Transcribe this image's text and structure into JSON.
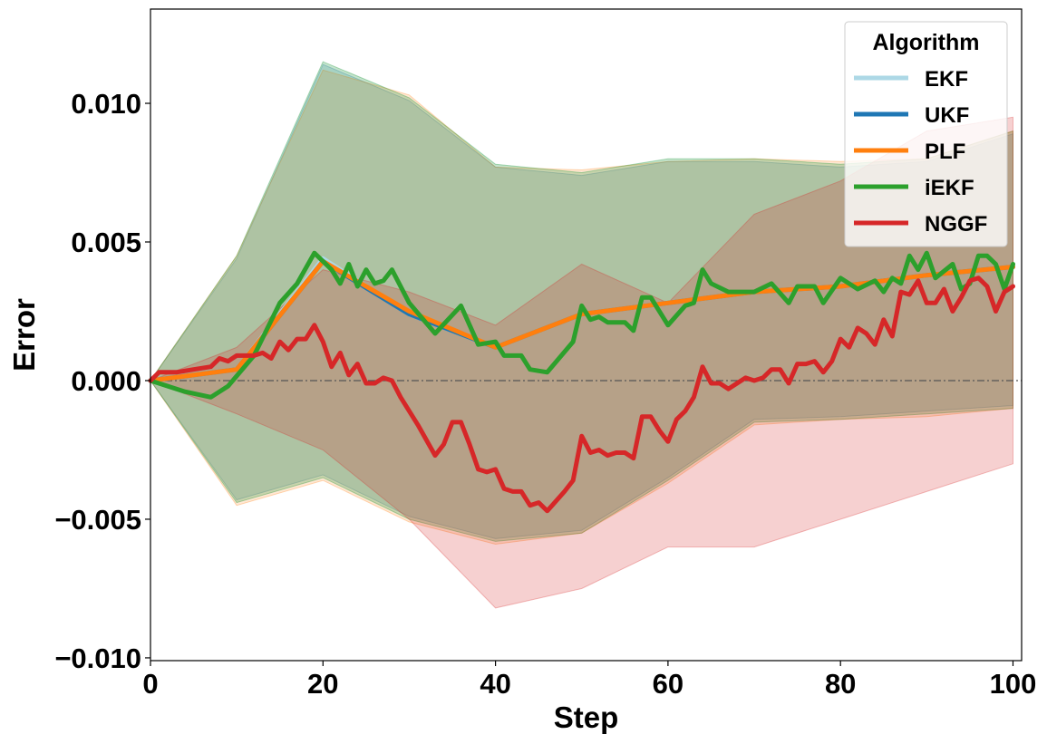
{
  "chart_data": {
    "type": "line",
    "title": "",
    "xlabel": "Step",
    "ylabel": "Error",
    "xlim": [
      0,
      101
    ],
    "ylim": [
      -0.0101,
      0.0134
    ],
    "xticks": [
      0,
      20,
      40,
      60,
      80,
      100
    ],
    "xtick_labels": [
      "0",
      "20",
      "40",
      "60",
      "80",
      "100"
    ],
    "yticks": [
      -0.01,
      -0.005,
      0.0,
      0.005,
      0.01
    ],
    "ytick_labels": [
      "−0.010",
      "−0.005",
      "0.000",
      "0.005",
      "0.010"
    ],
    "reference_line": {
      "y": 0.0,
      "style": "dash-dot",
      "color": "#555555"
    },
    "grid": false,
    "legend": {
      "title": "Algorithm",
      "placement": "top-right"
    },
    "series": [
      {
        "name": "EKF",
        "color": "#add8e6",
        "x": [
          0,
          10,
          20,
          30,
          40,
          50,
          60,
          70,
          80,
          90,
          100
        ],
        "values": [
          0.0,
          0.0004,
          0.0044,
          0.0024,
          0.0012,
          0.0024,
          0.0028,
          0.0032,
          0.0034,
          0.0038,
          0.0041
        ],
        "band_upper": [
          0.0,
          0.0045,
          0.0115,
          0.0102,
          0.0078,
          0.0075,
          0.008,
          0.008,
          0.0078,
          0.008,
          0.009
        ],
        "band_lower": [
          0.0,
          -0.0044,
          -0.0035,
          -0.005,
          -0.0058,
          -0.0055,
          -0.0036,
          -0.0015,
          -0.0014,
          -0.0012,
          -0.001
        ]
      },
      {
        "name": "UKF",
        "color": "#1f77b4",
        "x": [
          0,
          10,
          20,
          30,
          40,
          50,
          60,
          70,
          80,
          90,
          100
        ],
        "values": [
          0.0,
          0.0004,
          0.0043,
          0.0024,
          0.0012,
          0.0024,
          0.0028,
          0.0032,
          0.0034,
          0.0038,
          0.0041
        ],
        "band_upper": [
          0.0,
          0.0044,
          0.0114,
          0.0101,
          0.0077,
          0.0074,
          0.0079,
          0.0079,
          0.0077,
          0.0079,
          0.0089
        ],
        "band_lower": [
          0.0,
          -0.0043,
          -0.0034,
          -0.0049,
          -0.0057,
          -0.0054,
          -0.0035,
          -0.0014,
          -0.0013,
          -0.0011,
          -0.0009
        ]
      },
      {
        "name": "PLF",
        "color": "#ff7f0e",
        "x": [
          0,
          10,
          20,
          30,
          40,
          50,
          60,
          70,
          80,
          90,
          100
        ],
        "values": [
          0.0,
          0.0004,
          0.0043,
          0.0025,
          0.0012,
          0.0024,
          0.0028,
          0.0032,
          0.0034,
          0.0038,
          0.0041
        ],
        "band_upper": [
          0.0,
          0.0045,
          0.0112,
          0.0103,
          0.0077,
          0.0076,
          0.0079,
          0.008,
          0.0079,
          0.008,
          0.009
        ],
        "band_lower": [
          0.0,
          -0.0045,
          -0.0036,
          -0.0051,
          -0.0059,
          -0.0055,
          -0.0037,
          -0.0016,
          -0.0014,
          -0.0013,
          -0.001
        ]
      },
      {
        "name": "iEKF",
        "color": "#2ca02c",
        "x": [
          0,
          2,
          4,
          7,
          9,
          12,
          15,
          17,
          19,
          21,
          22,
          23,
          24,
          25,
          26,
          27,
          28,
          30,
          33,
          36,
          38,
          40,
          41,
          43,
          44,
          46,
          49,
          50,
          51,
          52,
          53,
          55,
          56,
          57,
          58,
          60,
          62,
          63,
          64,
          65,
          67,
          70,
          72,
          74,
          75,
          77,
          78,
          80,
          82,
          84,
          85,
          86,
          87,
          88,
          89,
          90,
          91,
          93,
          94,
          95,
          96,
          97,
          98,
          99,
          100
        ],
        "values": [
          0.0,
          -0.0002,
          -0.0004,
          -0.0006,
          -0.0002,
          0.0009,
          0.0028,
          0.0035,
          0.0046,
          0.004,
          0.0035,
          0.0042,
          0.0034,
          0.004,
          0.0035,
          0.0036,
          0.004,
          0.0028,
          0.0017,
          0.0027,
          0.0013,
          0.0014,
          0.0009,
          0.0009,
          0.0004,
          0.0003,
          0.0014,
          0.0027,
          0.0022,
          0.0023,
          0.0021,
          0.0021,
          0.0018,
          0.003,
          0.003,
          0.002,
          0.0027,
          0.0028,
          0.004,
          0.0035,
          0.0032,
          0.0032,
          0.0035,
          0.0028,
          0.0034,
          0.0034,
          0.0028,
          0.0037,
          0.0033,
          0.0036,
          0.0032,
          0.0037,
          0.0035,
          0.0045,
          0.004,
          0.0046,
          0.0037,
          0.0042,
          0.0033,
          0.0035,
          0.0045,
          0.0045,
          0.0042,
          0.0033,
          0.0042
        ],
        "band_upper": [
          0.0,
          0.0045,
          0.0115,
          0.0102,
          0.0078,
          0.0075,
          0.008,
          0.008,
          0.0078,
          0.008,
          0.009
        ],
        "band_lower": [
          0.0,
          -0.0044,
          -0.0035,
          -0.005,
          -0.0058,
          -0.0055,
          -0.0036,
          -0.0015,
          -0.0014,
          -0.0012,
          -0.001
        ],
        "band_x": [
          0,
          10,
          20,
          30,
          40,
          50,
          60,
          70,
          80,
          90,
          100
        ]
      },
      {
        "name": "NGGF",
        "color": "#d62728",
        "x": [
          0,
          1,
          2,
          3,
          5,
          7,
          8,
          9,
          10,
          11,
          12,
          13,
          14,
          15,
          16,
          17,
          18,
          19,
          20,
          21,
          22,
          23,
          24,
          25,
          26,
          27,
          28,
          29,
          31,
          33,
          34,
          35,
          36,
          37,
          38,
          39,
          40,
          41,
          42,
          43,
          44,
          45,
          46,
          48,
          49,
          50,
          51,
          52,
          53,
          54,
          55,
          56,
          57,
          58,
          59,
          60,
          61,
          62,
          63,
          64,
          65,
          66,
          67,
          68,
          69,
          70,
          71,
          72,
          73,
          74,
          75,
          76,
          77,
          78,
          79,
          80,
          81,
          82,
          83,
          84,
          85,
          86,
          87,
          88,
          89,
          90,
          91,
          92,
          93,
          94,
          95,
          96,
          97,
          98,
          99,
          100
        ],
        "values": [
          0.0,
          0.0003,
          0.0003,
          0.0003,
          0.0004,
          0.0005,
          0.0008,
          0.0007,
          0.0009,
          0.0009,
          0.0009,
          0.001,
          0.0008,
          0.0014,
          0.0011,
          0.0015,
          0.0015,
          0.002,
          0.0014,
          0.0005,
          0.001,
          0.0002,
          0.0006,
          -0.0001,
          -0.0001,
          0.0001,
          0.0,
          -0.0006,
          -0.0016,
          -0.0027,
          -0.0023,
          -0.0015,
          -0.0015,
          -0.0023,
          -0.0032,
          -0.0033,
          -0.0032,
          -0.0039,
          -0.004,
          -0.004,
          -0.0045,
          -0.0044,
          -0.0047,
          -0.004,
          -0.0036,
          -0.002,
          -0.0026,
          -0.0025,
          -0.0027,
          -0.0026,
          -0.0026,
          -0.0028,
          -0.0013,
          -0.0013,
          -0.0018,
          -0.0022,
          -0.0014,
          -0.0011,
          -0.0006,
          0.0005,
          -0.0001,
          -0.0001,
          -0.0003,
          -0.0001,
          0.0001,
          0.0,
          0.0001,
          0.0004,
          0.0004,
          -0.0001,
          0.0006,
          0.0006,
          0.0007,
          0.0003,
          0.0007,
          0.0015,
          0.0012,
          0.0019,
          0.0017,
          0.0013,
          0.0022,
          0.0016,
          0.0032,
          0.0031,
          0.0036,
          0.0028,
          0.0028,
          0.0033,
          0.0025,
          0.003,
          0.0036,
          0.0037,
          0.0034,
          0.0025,
          0.0032,
          0.0034
        ],
        "band_upper": [
          0.0,
          0.0012,
          0.004,
          0.0032,
          0.002,
          0.0042,
          0.0028,
          0.006,
          0.0072,
          0.009,
          0.0095
        ],
        "band_lower": [
          0.0,
          -0.0012,
          -0.0025,
          -0.005,
          -0.0082,
          -0.0075,
          -0.006,
          -0.006,
          -0.005,
          -0.004,
          -0.003
        ],
        "band_x": [
          0,
          10,
          20,
          30,
          40,
          50,
          60,
          70,
          80,
          90,
          100
        ]
      }
    ]
  }
}
